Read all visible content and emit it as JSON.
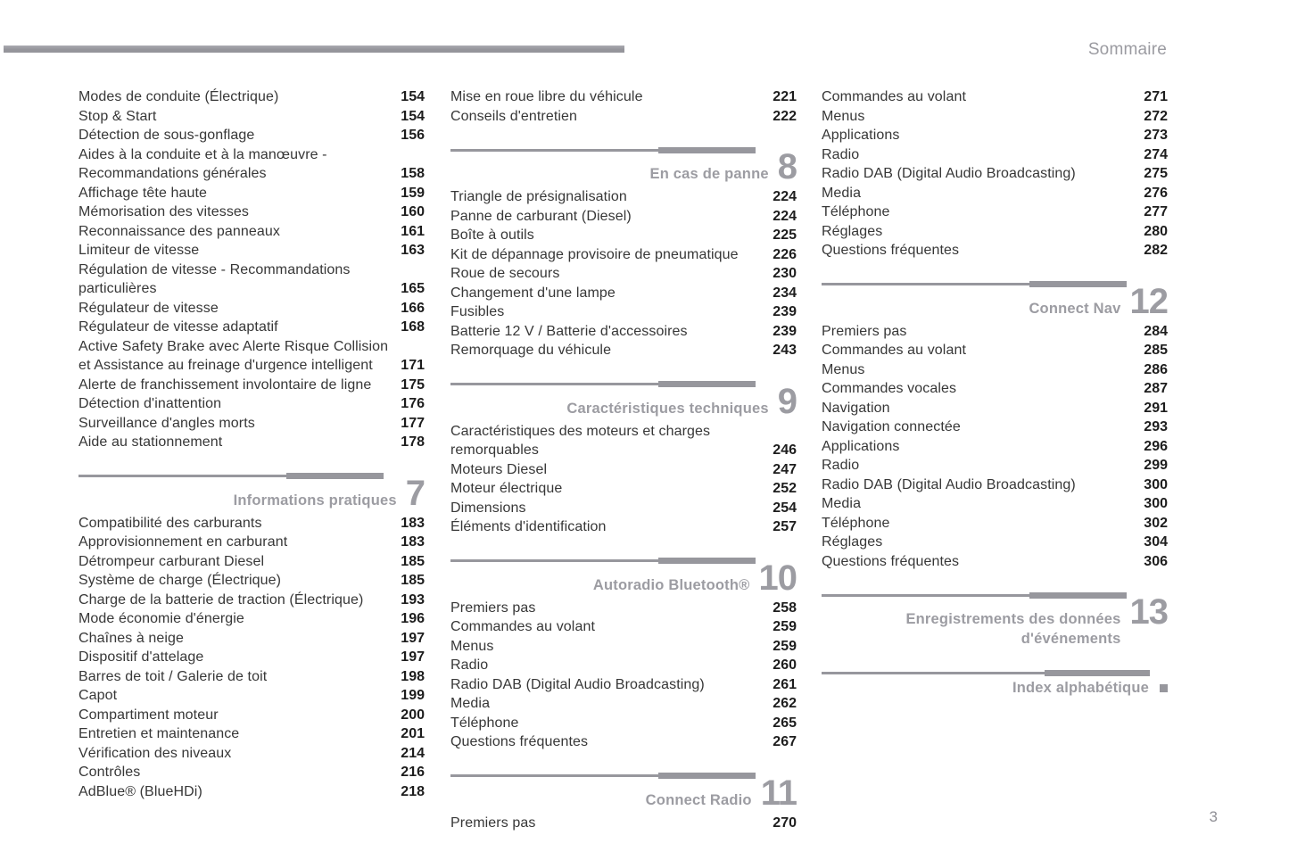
{
  "page": {
    "header_label": "Sommaire",
    "folio": "3"
  },
  "colors": {
    "accent_gray": "#97979d",
    "heading_gray": "#9c9ca2",
    "text": "#373737",
    "page_number": "#1d1d1d"
  },
  "columns": [
    {
      "blocks": [
        {
          "type": "entries",
          "items": [
            {
              "label": "Modes de conduite (Électrique)",
              "page": "154"
            },
            {
              "label": "Stop & Start",
              "page": "154"
            },
            {
              "label": "Détection de sous-gonflage",
              "page": "156"
            },
            {
              "label": "Aides à la conduite et à la manœuvre -\nRecommandations générales",
              "page": "158"
            },
            {
              "label": "Affichage tête haute",
              "page": "159"
            },
            {
              "label": "Mémorisation des vitesses",
              "page": "160"
            },
            {
              "label": "Reconnaissance des panneaux",
              "page": "161"
            },
            {
              "label": "Limiteur de vitesse",
              "page": "163"
            },
            {
              "label": "Régulation de vitesse - Recommandations\nparticulières",
              "page": "165"
            },
            {
              "label": "Régulateur de vitesse",
              "page": "166"
            },
            {
              "label": "Régulateur de vitesse adaptatif",
              "page": "168"
            },
            {
              "label": "Active Safety Brake avec Alerte Risque Collision\net Assistance au freinage d'urgence intelligent",
              "page": "171"
            },
            {
              "label": "Alerte de franchissement involontaire de ligne",
              "page": "175"
            },
            {
              "label": "Détection d'inattention",
              "page": "176"
            },
            {
              "label": "Surveillance d'angles morts",
              "page": "177"
            },
            {
              "label": "Aide au stationnement",
              "page": "178"
            }
          ]
        },
        {
          "type": "section",
          "title": "Informations pratiques",
          "number": "7"
        },
        {
          "type": "entries",
          "items": [
            {
              "label": "Compatibilité des carburants",
              "page": "183"
            },
            {
              "label": "Approvisionnement en carburant",
              "page": "183"
            },
            {
              "label": "Détrompeur carburant Diesel",
              "page": "185"
            },
            {
              "label": "Système de charge (Électrique)",
              "page": "185"
            },
            {
              "label": "Charge de la batterie de traction (Électrique)",
              "page": "193"
            },
            {
              "label": "Mode économie d'énergie",
              "page": "196"
            },
            {
              "label": "Chaînes à neige",
              "page": "197"
            },
            {
              "label": "Dispositif d'attelage",
              "page": "197"
            },
            {
              "label": "Barres de toit / Galerie de toit",
              "page": "198"
            },
            {
              "label": "Capot",
              "page": "199"
            },
            {
              "label": "Compartiment moteur",
              "page": "200"
            },
            {
              "label": "Entretien et maintenance",
              "page": "201"
            },
            {
              "label": "Vérification des niveaux",
              "page": "214"
            },
            {
              "label": "Contrôles",
              "page": "216"
            },
            {
              "label": "AdBlue® (BlueHDi)",
              "page": "218"
            }
          ]
        }
      ]
    },
    {
      "blocks": [
        {
          "type": "entries",
          "items": [
            {
              "label": "Mise en roue libre du véhicule",
              "page": "221"
            },
            {
              "label": "Conseils d'entretien",
              "page": "222"
            }
          ]
        },
        {
          "type": "section",
          "title": "En cas de panne",
          "number": "8"
        },
        {
          "type": "entries",
          "items": [
            {
              "label": "Triangle de présignalisation",
              "page": "224"
            },
            {
              "label": "Panne de carburant (Diesel)",
              "page": "224"
            },
            {
              "label": "Boîte à outils",
              "page": "225"
            },
            {
              "label": "Kit de dépannage provisoire de pneumatique",
              "page": "226"
            },
            {
              "label": "Roue de secours",
              "page": "230"
            },
            {
              "label": "Changement d'une lampe",
              "page": "234"
            },
            {
              "label": "Fusibles",
              "page": "239"
            },
            {
              "label": "Batterie 12 V / Batterie d'accessoires",
              "page": "239"
            },
            {
              "label": "Remorquage du véhicule",
              "page": "243"
            }
          ]
        },
        {
          "type": "section",
          "title": "Caractéristiques techniques",
          "number": "9"
        },
        {
          "type": "entries",
          "items": [
            {
              "label": "Caractéristiques des moteurs et charges\nremorquables",
              "page": "246"
            },
            {
              "label": "Moteurs Diesel",
              "page": "247"
            },
            {
              "label": "Moteur électrique",
              "page": "252"
            },
            {
              "label": "Dimensions",
              "page": "254"
            },
            {
              "label": "Éléments d'identification",
              "page": "257"
            }
          ]
        },
        {
          "type": "section",
          "title": "Autoradio Bluetooth®",
          "number": "10"
        },
        {
          "type": "entries",
          "items": [
            {
              "label": "Premiers pas",
              "page": "258"
            },
            {
              "label": "Commandes au volant",
              "page": "259"
            },
            {
              "label": "Menus",
              "page": "259"
            },
            {
              "label": "Radio",
              "page": "260"
            },
            {
              "label": "Radio DAB (Digital Audio Broadcasting)",
              "page": "261"
            },
            {
              "label": "Media",
              "page": "262"
            },
            {
              "label": "Téléphone",
              "page": "265"
            },
            {
              "label": "Questions fréquentes",
              "page": "267"
            }
          ]
        },
        {
          "type": "section",
          "title": "Connect Radio",
          "number": "11"
        },
        {
          "type": "entries",
          "items": [
            {
              "label": "Premiers pas",
              "page": "270"
            }
          ]
        }
      ]
    },
    {
      "blocks": [
        {
          "type": "entries",
          "items": [
            {
              "label": "Commandes au volant",
              "page": "271"
            },
            {
              "label": "Menus",
              "page": "272"
            },
            {
              "label": "Applications",
              "page": "273"
            },
            {
              "label": "Radio",
              "page": "274"
            },
            {
              "label": "Radio DAB (Digital Audio Broadcasting)",
              "page": "275"
            },
            {
              "label": "Media",
              "page": "276"
            },
            {
              "label": "Téléphone",
              "page": "277"
            },
            {
              "label": "Réglages",
              "page": "280"
            },
            {
              "label": "Questions fréquentes",
              "page": "282"
            }
          ]
        },
        {
          "type": "section",
          "title": "Connect Nav",
          "number": "12"
        },
        {
          "type": "entries",
          "items": [
            {
              "label": "Premiers pas",
              "page": "284"
            },
            {
              "label": "Commandes au volant",
              "page": "285"
            },
            {
              "label": "Menus",
              "page": "286"
            },
            {
              "label": "Commandes vocales",
              "page": "287"
            },
            {
              "label": "Navigation",
              "page": "291"
            },
            {
              "label": "Navigation connectée",
              "page": "293"
            },
            {
              "label": "Applications",
              "page": "296"
            },
            {
              "label": "Radio",
              "page": "299"
            },
            {
              "label": "Radio DAB (Digital Audio Broadcasting)",
              "page": "300"
            },
            {
              "label": "Media",
              "page": "300"
            },
            {
              "label": "Téléphone",
              "page": "302"
            },
            {
              "label": "Réglages",
              "page": "304"
            },
            {
              "label": "Questions fréquentes",
              "page": "306"
            }
          ]
        },
        {
          "type": "section",
          "title": "Enregistrements des données\nd'événements",
          "number": "13"
        },
        {
          "type": "index",
          "title": "Index alphabétique"
        }
      ]
    }
  ]
}
